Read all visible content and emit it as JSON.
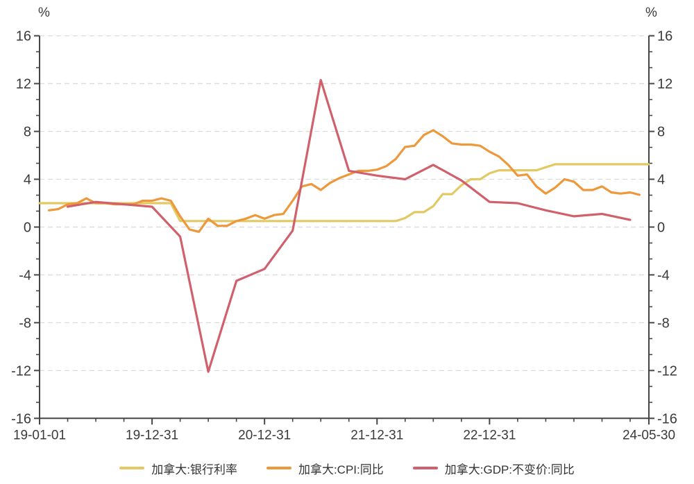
{
  "chart_data": {
    "type": "line",
    "unit_label_left": "%",
    "unit_label_right": "%",
    "ylim": [
      -16,
      16
    ],
    "y_major_ticks": [
      16,
      12,
      8,
      4,
      0,
      -4,
      -8,
      -12,
      -16
    ],
    "y_minor_step": 1.3333,
    "grid": "horizontal-dashed",
    "legend_position": "bottom",
    "x_unit": "months-since-2019-01-01",
    "x_range": [
      0,
      65
    ],
    "x_minor_step_months": 3,
    "x_ticks": [
      {
        "label": "19-01-01",
        "month": 0
      },
      {
        "label": "19-12-31",
        "month": 12
      },
      {
        "label": "20-12-31",
        "month": 24
      },
      {
        "label": "21-12-31",
        "month": 36
      },
      {
        "label": "22-12-31",
        "month": 48
      },
      {
        "label": "24-05-30",
        "month": 65
      }
    ],
    "series": [
      {
        "name": "加拿大:银行利率",
        "color": "#E2C963",
        "frequency": "monthly",
        "x": [
          0,
          1,
          2,
          3,
          4,
          5,
          6,
          7,
          8,
          9,
          10,
          11,
          12,
          13,
          14,
          15,
          16,
          17,
          18,
          19,
          20,
          21,
          22,
          23,
          24,
          25,
          26,
          27,
          28,
          29,
          30,
          31,
          32,
          33,
          34,
          35,
          36,
          37,
          38,
          39,
          40,
          41,
          42,
          43,
          44,
          45,
          46,
          47,
          48,
          49,
          50,
          51,
          52,
          53,
          54,
          55,
          56,
          57,
          58,
          59,
          60,
          61,
          62,
          63,
          64,
          65
        ],
        "values": [
          2,
          2,
          2,
          2,
          2,
          2,
          2,
          2,
          2,
          2,
          2,
          2,
          2,
          2,
          2,
          0.5,
          0.5,
          0.5,
          0.5,
          0.5,
          0.5,
          0.5,
          0.5,
          0.5,
          0.5,
          0.5,
          0.5,
          0.5,
          0.5,
          0.5,
          0.5,
          0.5,
          0.5,
          0.5,
          0.5,
          0.5,
          0.5,
          0.5,
          0.5,
          0.75,
          1.25,
          1.25,
          1.75,
          2.75,
          2.75,
          3.5,
          4,
          4,
          4.5,
          4.75,
          4.75,
          4.75,
          4.75,
          4.75,
          5,
          5.25,
          5.25,
          5.25,
          5.25,
          5.25,
          5.25,
          5.25,
          5.25,
          5.25,
          5.25,
          5.25
        ]
      },
      {
        "name": "加拿大:CPI:同比",
        "color": "#EC983B",
        "frequency": "monthly",
        "x": [
          1,
          2,
          3,
          4,
          5,
          6,
          7,
          8,
          9,
          10,
          11,
          12,
          13,
          14,
          15,
          16,
          17,
          18,
          19,
          20,
          21,
          22,
          23,
          24,
          25,
          26,
          27,
          28,
          29,
          30,
          31,
          32,
          33,
          34,
          35,
          36,
          37,
          38,
          39,
          40,
          41,
          42,
          43,
          44,
          45,
          46,
          47,
          48,
          49,
          50,
          51,
          52,
          53,
          54,
          55,
          56,
          57,
          58,
          59,
          60,
          61,
          62,
          63,
          64
        ],
        "values": [
          1.4,
          1.5,
          1.9,
          2.0,
          2.4,
          2.0,
          2.0,
          1.9,
          1.9,
          1.9,
          2.2,
          2.2,
          2.4,
          2.2,
          0.9,
          -0.2,
          -0.4,
          0.7,
          0.1,
          0.1,
          0.5,
          0.7,
          1.0,
          0.7,
          1.0,
          1.1,
          2.2,
          3.4,
          3.6,
          3.1,
          3.7,
          4.1,
          4.4,
          4.7,
          4.7,
          4.8,
          5.1,
          5.7,
          6.7,
          6.8,
          7.7,
          8.1,
          7.6,
          7.0,
          6.9,
          6.9,
          6.8,
          6.3,
          5.9,
          5.2,
          4.3,
          4.4,
          3.4,
          2.8,
          3.3,
          4.0,
          3.8,
          3.1,
          3.1,
          3.4,
          2.9,
          2.8,
          2.9,
          2.7
        ]
      },
      {
        "name": "加拿大:GDP:不变价:同比",
        "color": "#D0606B",
        "frequency": "quarterly",
        "x": [
          3,
          6,
          9,
          12,
          15,
          18,
          21,
          24,
          27,
          30,
          33,
          36,
          39,
          42,
          45,
          48,
          51,
          54,
          57,
          60,
          63
        ],
        "values": [
          1.7,
          2.1,
          1.9,
          1.7,
          -0.8,
          -12.1,
          -4.5,
          -3.5,
          -0.3,
          12.3,
          4.7,
          4.3,
          4.0,
          5.2,
          3.9,
          2.1,
          2.0,
          1.4,
          0.9,
          1.1,
          0.6
        ]
      }
    ],
    "style": {
      "grid_color": "#dbdbdb",
      "axis_color": "#454545",
      "tick_label_color": "#3a3a3a",
      "background": "#ffffff"
    }
  }
}
